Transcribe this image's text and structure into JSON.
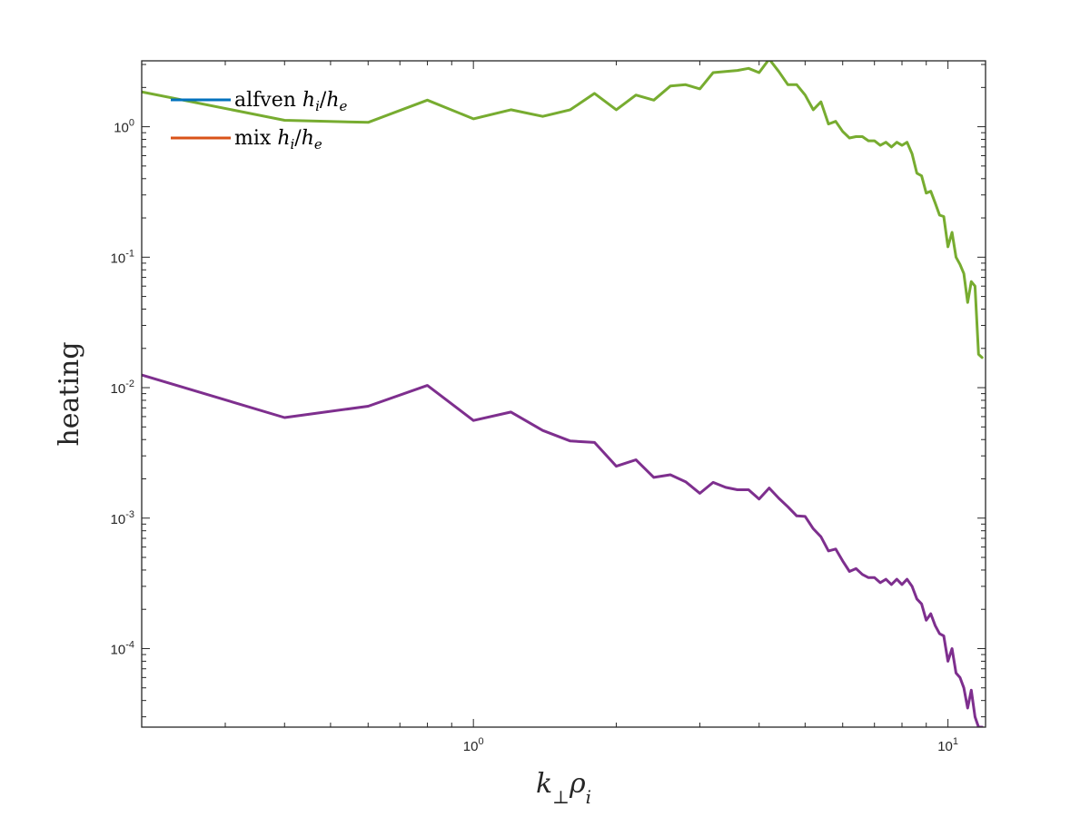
{
  "chart_data": {
    "type": "line",
    "x_scale": "log",
    "y_scale": "log",
    "xlim": [
      0.2,
      12
    ],
    "ylim": [
      2.5e-05,
      3.2
    ],
    "xlabel": "k⊥ρi",
    "ylabel": "heating",
    "x_ticks": [
      {
        "value": 1,
        "base": "10",
        "exp": "0"
      },
      {
        "value": 10,
        "base": "10",
        "exp": "1"
      }
    ],
    "y_ticks": [
      {
        "value": 0.0001,
        "base": "10",
        "exp": "-4"
      },
      {
        "value": 0.001,
        "base": "10",
        "exp": "-3"
      },
      {
        "value": 0.01,
        "base": "10",
        "exp": "-2"
      },
      {
        "value": 0.1,
        "base": "10",
        "exp": "-1"
      },
      {
        "value": 1,
        "base": "10",
        "exp": "0"
      }
    ],
    "grid": false,
    "legend_position": "top-left",
    "legend": [
      {
        "label": "alfven hi/he",
        "color": "#0072BD"
      },
      {
        "label": "mix hi/he",
        "color": "#D95319"
      }
    ],
    "series": [
      {
        "color": "#77AC30",
        "x": [
          0.2,
          0.4,
          0.6,
          0.8,
          1.0,
          1.2,
          1.4,
          1.6,
          1.8,
          2.0,
          2.2,
          2.4,
          2.6,
          2.8,
          3.0,
          3.2,
          3.4,
          3.6,
          3.8,
          4.0,
          4.2,
          4.4,
          4.6,
          4.8,
          5.0,
          5.2,
          5.4,
          5.6,
          5.8,
          6.0,
          6.2,
          6.4,
          6.6,
          6.8,
          7.0,
          7.2,
          7.4,
          7.6,
          7.8,
          8.0,
          8.2,
          8.4,
          8.6,
          8.8,
          9.0,
          9.2,
          9.4,
          9.6,
          9.8,
          10.0,
          10.2,
          10.4,
          10.6,
          10.8,
          11.0,
          11.2,
          11.4,
          11.6,
          11.8
        ],
        "y": [
          1.85,
          1.12,
          1.08,
          1.6,
          1.15,
          1.35,
          1.2,
          1.35,
          1.8,
          1.35,
          1.75,
          1.6,
          2.05,
          2.1,
          1.95,
          2.6,
          2.65,
          2.7,
          2.8,
          2.6,
          3.3,
          2.65,
          2.1,
          2.1,
          1.75,
          1.35,
          1.55,
          1.05,
          1.1,
          0.92,
          0.82,
          0.84,
          0.84,
          0.78,
          0.78,
          0.72,
          0.76,
          0.7,
          0.76,
          0.72,
          0.76,
          0.62,
          0.44,
          0.42,
          0.31,
          0.32,
          0.26,
          0.21,
          0.205,
          0.12,
          0.155,
          0.1,
          0.088,
          0.075,
          0.045,
          0.065,
          0.06,
          0.018,
          0.017
        ]
      },
      {
        "color": "#7E2F8E",
        "x": [
          0.2,
          0.4,
          0.6,
          0.8,
          1.0,
          1.2,
          1.4,
          1.6,
          1.8,
          2.0,
          2.2,
          2.4,
          2.6,
          2.8,
          3.0,
          3.2,
          3.4,
          3.6,
          3.8,
          4.0,
          4.2,
          4.4,
          4.6,
          4.8,
          5.0,
          5.2,
          5.4,
          5.6,
          5.8,
          6.0,
          6.2,
          6.4,
          6.6,
          6.8,
          7.0,
          7.2,
          7.4,
          7.6,
          7.8,
          8.0,
          8.2,
          8.4,
          8.6,
          8.8,
          9.0,
          9.2,
          9.4,
          9.6,
          9.8,
          10.0,
          10.2,
          10.4,
          10.6,
          10.8,
          11.0,
          11.2,
          11.4,
          11.6,
          11.8
        ],
        "y": [
          0.0125,
          0.0059,
          0.0072,
          0.0104,
          0.0056,
          0.0065,
          0.0047,
          0.0039,
          0.0038,
          0.0025,
          0.0028,
          0.00205,
          0.00215,
          0.0019,
          0.00155,
          0.00188,
          0.00172,
          0.00165,
          0.00165,
          0.0014,
          0.0017,
          0.00142,
          0.00122,
          0.00104,
          0.00103,
          0.00083,
          0.00072,
          0.00056,
          0.00058,
          0.00047,
          0.00039,
          0.00041,
          0.00037,
          0.00035,
          0.00035,
          0.00032,
          0.00034,
          0.00031,
          0.00034,
          0.00031,
          0.00034,
          0.0003,
          0.00024,
          0.00022,
          0.000165,
          0.000185,
          0.00015,
          0.00013,
          0.000125,
          8e-05,
          0.0001,
          6.5e-05,
          6e-05,
          5e-05,
          3.5e-05,
          4.8e-05,
          3e-05,
          2.5e-05,
          2.5e-05
        ]
      }
    ]
  }
}
